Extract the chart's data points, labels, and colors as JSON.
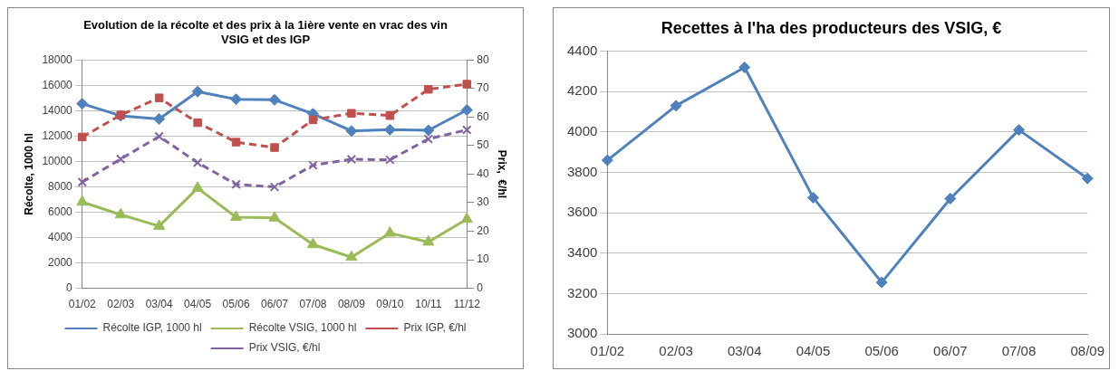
{
  "chart_data": [
    {
      "type": "line",
      "title": "Evolution de la récolte et des prix à la 1ière vente en vrac des vin VSIG et des IGP",
      "ylabel": "Récolte, 1000 hl",
      "y2label": "Prix,  €/hl",
      "categories": [
        "01/02",
        "02/03",
        "03/04",
        "04/05",
        "05/06",
        "06/07",
        "07/08",
        "08/09",
        "09/10",
        "10/11",
        "11/12"
      ],
      "series": [
        {
          "name": "Récolte IGP, 1000 hl",
          "color": "#4f81bd",
          "marker": "diamond",
          "line_style": "solid",
          "values": [
            14550,
            13600,
            13350,
            15500,
            14900,
            14850,
            13750,
            12400,
            12500,
            12450,
            14050
          ]
        },
        {
          "name": "Récolte VSIG, 1000 hl",
          "color": "#9bbb59",
          "marker": "triangle",
          "line_style": "solid",
          "values": [
            6800,
            5800,
            4900,
            7900,
            5600,
            5550,
            3450,
            2450,
            4350,
            3650,
            5450
          ]
        },
        {
          "name": "Prix IGP, €/hl",
          "color": "#c0504d",
          "marker": "square",
          "line_style": "dashed",
          "axis": "y2",
          "values": [
            53,
            60.7,
            66.7,
            58,
            51.2,
            49.3,
            59,
            61.3,
            60.5,
            69.7,
            71.5
          ]
        },
        {
          "name": "Prix VSIG, €/hl",
          "color": "#8064a2",
          "marker": "cross",
          "line_style": "dashed",
          "axis": "y2",
          "values": [
            37.2,
            45.3,
            53.2,
            44,
            36.4,
            35.5,
            43.1,
            45.2,
            45,
            52.3,
            55.5
          ]
        }
      ],
      "ylim": [
        0,
        18000
      ],
      "yticks": [
        0,
        2000,
        4000,
        6000,
        8000,
        10000,
        12000,
        14000,
        16000,
        18000
      ],
      "y2lim": [
        0,
        80
      ],
      "y2ticks": [
        0,
        10,
        20,
        30,
        40,
        50,
        60,
        70,
        80
      ],
      "grid": "y",
      "legend": "bottom"
    },
    {
      "type": "line",
      "title": "Recettes à l'ha des producteurs des VSIG, €",
      "categories": [
        "01/02",
        "02/03",
        "03/04",
        "04/05",
        "05/06",
        "06/07",
        "07/08",
        "08/09"
      ],
      "series": [
        {
          "color": "#4f81bd",
          "values": [
            3860,
            4130,
            4320,
            3675,
            3255,
            3670,
            4010,
            3770
          ]
        }
      ],
      "marker": "diamond",
      "line_style": "solid",
      "ylim": [
        3000,
        4400
      ],
      "yticks": [
        3000,
        3200,
        3400,
        3600,
        3800,
        4000,
        4200,
        4400
      ],
      "grid": "y",
      "legend": false
    }
  ]
}
